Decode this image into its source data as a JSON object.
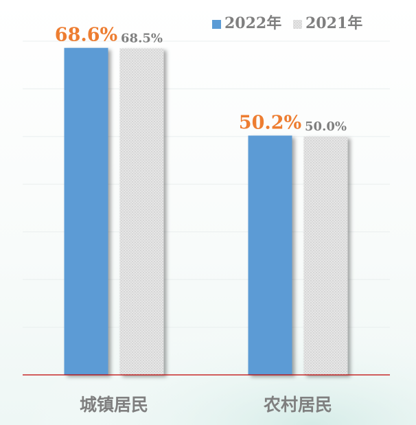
{
  "chart_data": {
    "type": "bar",
    "title": "",
    "xlabel": "",
    "ylabel": "",
    "categories": [
      "城镇居民",
      "农村居民"
    ],
    "series": [
      {
        "name": "2022年",
        "values": [
          68.6,
          50.2
        ],
        "labels": [
          "68.6%",
          "50.2%"
        ],
        "color": "#5b9bd5",
        "label_color": "#ed7d31"
      },
      {
        "name": "2021年",
        "values": [
          68.5,
          50.0
        ],
        "labels": [
          "68.5%",
          "50.0%"
        ],
        "color": "#d9d9d9",
        "label_color": "#7f7f7f"
      }
    ],
    "ylim": [
      0,
      70
    ],
    "grid": true,
    "legend_position": "top-right",
    "axis_color": "#c00000"
  }
}
